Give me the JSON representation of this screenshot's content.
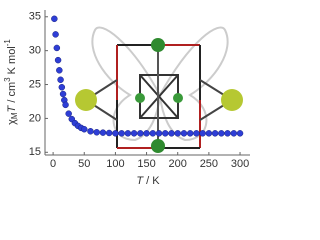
{
  "chart_data": {
    "type": "scatter",
    "x_label_parts": [
      "T",
      " / K"
    ],
    "y_label_parts": [
      "χ",
      "M",
      "T",
      " / cm",
      "3",
      " K mol",
      "-1"
    ],
    "x": [
      2,
      4,
      6,
      8,
      10,
      12,
      14,
      16,
      18,
      20,
      25,
      30,
      35,
      40,
      45,
      50,
      60,
      70,
      80,
      90,
      100,
      110,
      120,
      130,
      140,
      150,
      160,
      170,
      180,
      190,
      200,
      210,
      220,
      230,
      240,
      250,
      260,
      270,
      280,
      290,
      300
    ],
    "series": [
      {
        "color": "#2e3ed6",
        "values": [
          34.7,
          32.4,
          30.4,
          28.6,
          27.1,
          25.7,
          24.6,
          23.6,
          22.7,
          22.0,
          20.7,
          19.9,
          19.3,
          18.9,
          18.6,
          18.4,
          18.1,
          17.95,
          17.9,
          17.85,
          17.8,
          17.8,
          17.8,
          17.8,
          17.8,
          17.8,
          17.8,
          17.8,
          17.8,
          17.8,
          17.8,
          17.8,
          17.8,
          17.8,
          17.8,
          17.8,
          17.8,
          17.8,
          17.8,
          17.8,
          17.8
        ]
      }
    ],
    "xlim": [
      -13,
      316
    ],
    "ylim": [
      14.6,
      36
    ],
    "xticks": [
      0,
      50,
      100,
      150,
      200,
      250,
      300
    ],
    "yticks": [
      15,
      20,
      25,
      30,
      35
    ]
  }
}
